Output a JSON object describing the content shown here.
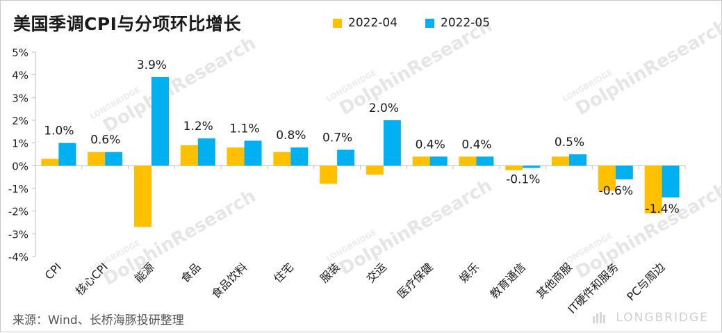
{
  "title": "美国季调CPI与分项环比增长",
  "source": "来源：Wind、长桥海豚投研整理",
  "brand": "LONGBRIDGE",
  "watermark": "DolphinResearch",
  "watermark_small": "LONGBRIDGE",
  "colors": {
    "series1": "#FFC000",
    "series2": "#00B0F0",
    "axis": "#bfbfbf"
  },
  "chart_data": {
    "type": "bar",
    "categories": [
      "CPI",
      "核心CPI",
      "能源",
      "食品",
      "食品饮料",
      "住宅",
      "服装",
      "交运",
      "医疗保健",
      "娱乐",
      "教育通信",
      "其他商服",
      "IT硬件和服务",
      "PC与周边"
    ],
    "series": [
      {
        "name": "2022-04",
        "values": [
          0.3,
          0.6,
          -2.7,
          0.9,
          0.8,
          0.6,
          -0.8,
          -0.4,
          0.4,
          0.4,
          -0.2,
          0.4,
          -1.1,
          -2.1
        ]
      },
      {
        "name": "2022-05",
        "values": [
          1.0,
          0.6,
          3.9,
          1.2,
          1.1,
          0.8,
          0.7,
          2.0,
          0.4,
          0.4,
          -0.1,
          0.5,
          -0.6,
          -1.4
        ]
      }
    ],
    "data_labels": [
      "1.0%",
      "0.6%",
      "3.9%",
      "1.2%",
      "1.1%",
      "0.8%",
      "0.7%",
      "2.0%",
      "0.4%",
      "0.4%",
      "-0.1%",
      "0.5%",
      "-0.6%",
      "-1.4%"
    ],
    "y_ticks": [
      "5%",
      "4%",
      "3%",
      "2%",
      "1%",
      "0%",
      "-1%",
      "-2%",
      "-3%",
      "-4%"
    ],
    "ylim": [
      -4,
      5
    ],
    "grid": false,
    "legend_position": "top-center"
  }
}
